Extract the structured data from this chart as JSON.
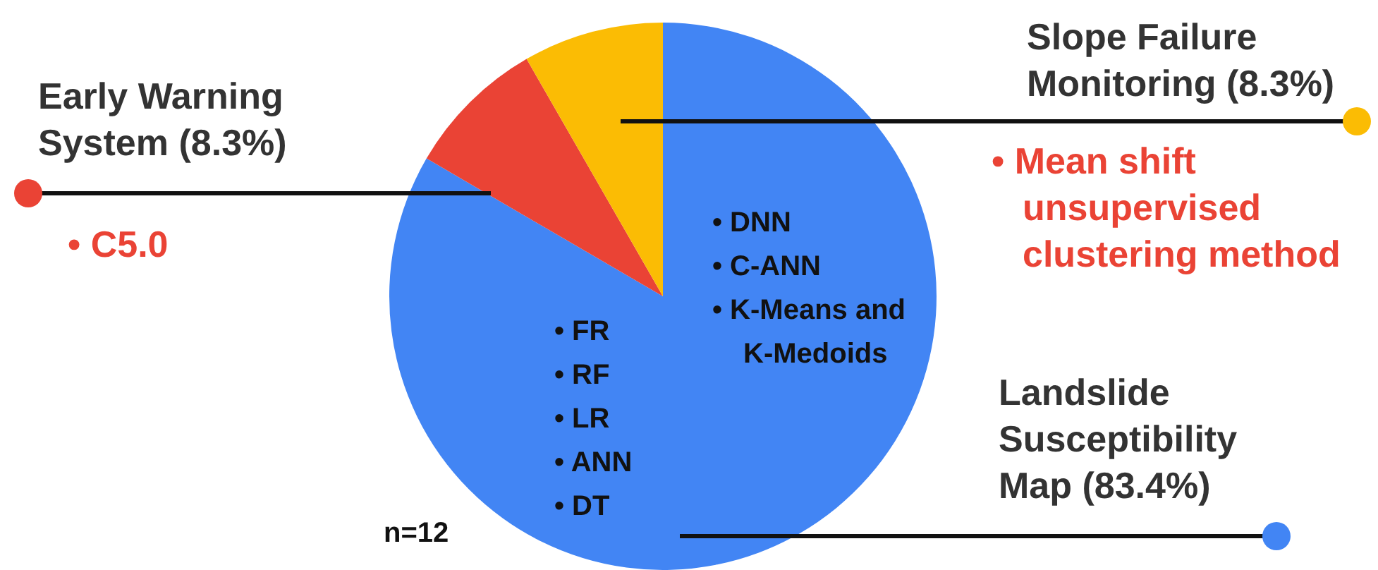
{
  "chart_data": {
    "type": "pie",
    "categories": [
      "Landslide Susceptibility Map (83.4%)",
      "Early Warning System (8.3%)",
      "Slope Failure Monitoring (8.3%)"
    ],
    "values": [
      83.4,
      8.3,
      8.3
    ],
    "colors": [
      "#4285f4",
      "#ea4335",
      "#fbbc04"
    ],
    "legend": false,
    "annotations": [
      "• C5.0",
      "• Mean shift unsupervised clustering method",
      "• DNN",
      "• C-ANN",
      "• K-Means and K-Medoids",
      "• FR",
      "• RF",
      "• LR",
      "• ANN",
      "• DT",
      "n=12"
    ]
  }
}
